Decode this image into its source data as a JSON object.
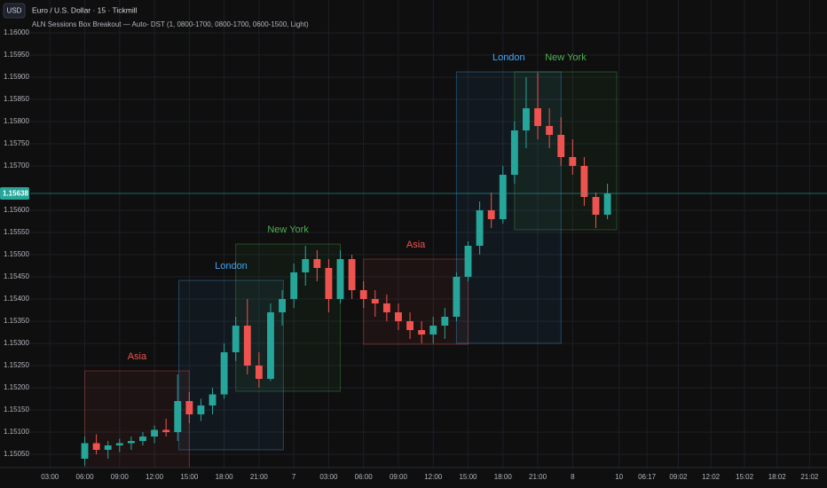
{
  "chart_data": {
    "type": "candlestick",
    "currency": "USD",
    "title": "Euro / U.S. Dollar · 15 · Tickmill",
    "subtitle": "ALN Sessions Box Breakout — Auto- DST (1, 0800-1700, 0800-1700, 0600-1500, Light)",
    "up_color": "#26a69a",
    "down_color": "#ef5350",
    "x": [
      6,
      7,
      8,
      9,
      10,
      11,
      12,
      13,
      14,
      15,
      16,
      17,
      18,
      19,
      20,
      21,
      22,
      23,
      24,
      25,
      26,
      27,
      28,
      29,
      30,
      31,
      32,
      33,
      34,
      35,
      36,
      37,
      38,
      39,
      40,
      41,
      42,
      43,
      44,
      45,
      46,
      47,
      48,
      49,
      50,
      51
    ],
    "open": [
      1.1504,
      1.15075,
      1.1506,
      1.1507,
      1.15075,
      1.1508,
      1.1509,
      1.15105,
      1.151,
      1.1517,
      1.1514,
      1.1516,
      1.15185,
      1.1528,
      1.1534,
      1.1525,
      1.1522,
      1.1537,
      1.154,
      1.1546,
      1.1549,
      1.1547,
      1.154,
      1.1549,
      1.1542,
      1.154,
      1.1539,
      1.1537,
      1.1535,
      1.1533,
      1.1532,
      1.1534,
      1.1536,
      1.1545,
      1.1552,
      1.156,
      1.1558,
      1.1568,
      1.1578,
      1.1583,
      1.1579,
      1.1577,
      1.1572,
      1.157,
      1.1563,
      1.1559
    ],
    "high": [
      1.1509,
      1.15095,
      1.1508,
      1.15085,
      1.1509,
      1.151,
      1.15115,
      1.1513,
      1.1523,
      1.1519,
      1.15175,
      1.152,
      1.153,
      1.1536,
      1.154,
      1.1528,
      1.1539,
      1.1542,
      1.1548,
      1.1552,
      1.1551,
      1.1549,
      1.1551,
      1.155,
      1.1544,
      1.1542,
      1.1541,
      1.1539,
      1.1537,
      1.1535,
      1.1536,
      1.1538,
      1.1546,
      1.1553,
      1.1562,
      1.1564,
      1.157,
      1.158,
      1.159,
      1.1591,
      1.1583,
      1.1581,
      1.1576,
      1.1572,
      1.1564,
      1.1566
    ],
    "low": [
      1.15025,
      1.1505,
      1.1504,
      1.15055,
      1.1506,
      1.1507,
      1.15075,
      1.1509,
      1.1508,
      1.1512,
      1.15125,
      1.1514,
      1.15175,
      1.1526,
      1.1523,
      1.152,
      1.15215,
      1.1534,
      1.1538,
      1.1543,
      1.1544,
      1.1537,
      1.1539,
      1.154,
      1.1538,
      1.1536,
      1.1535,
      1.1533,
      1.1531,
      1.153,
      1.153,
      1.1531,
      1.1535,
      1.1544,
      1.155,
      1.1556,
      1.1557,
      1.1566,
      1.1574,
      1.1576,
      1.1574,
      1.157,
      1.1568,
      1.1561,
      1.1556,
      1.1558
    ],
    "close": [
      1.15075,
      1.1506,
      1.1507,
      1.15075,
      1.1508,
      1.1509,
      1.15105,
      1.151,
      1.1517,
      1.1514,
      1.1516,
      1.15185,
      1.1528,
      1.1534,
      1.1525,
      1.1522,
      1.1537,
      1.154,
      1.1546,
      1.1549,
      1.1547,
      1.154,
      1.1549,
      1.1542,
      1.154,
      1.1539,
      1.1537,
      1.1535,
      1.1533,
      1.1532,
      1.1534,
      1.1536,
      1.1545,
      1.1552,
      1.156,
      1.1558,
      1.1568,
      1.1578,
      1.1583,
      1.1579,
      1.1577,
      1.1572,
      1.157,
      1.1563,
      1.1559,
      1.15638
    ],
    "last_price": 1.15638,
    "sessions": [
      {
        "name": "Asia",
        "color": "#ef5350",
        "start": 6,
        "end": 15,
        "high": 1.15238,
        "low": 1.1502
      },
      {
        "name": "London",
        "color": "#42a5f5",
        "start": 14.1,
        "end": 23.1,
        "high": 1.15442,
        "low": 1.1506
      },
      {
        "name": "New York",
        "color": "#4caf50",
        "start": 19,
        "end": 28,
        "high": 1.15524,
        "low": 1.15192
      },
      {
        "name": "Asia",
        "color": "#ef5350",
        "start": 30,
        "end": 39,
        "high": 1.1549,
        "low": 1.15298
      },
      {
        "name": "London",
        "color": "#42a5f5",
        "start": 38,
        "end": 47,
        "high": 1.15912,
        "low": 1.153
      },
      {
        "name": "New York",
        "color": "#4caf50",
        "start": 43,
        "end": 51.8,
        "high": 1.15912,
        "low": 1.15556
      }
    ],
    "xlim": [
      1.3,
      69.9
    ],
    "ylim": [
      1.1502,
      1.16074
    ],
    "grid": true,
    "yticks": [
      {
        "value": 1.16,
        "label": "1.16000"
      },
      {
        "value": 1.1595,
        "label": "1.15950"
      },
      {
        "value": 1.159,
        "label": "1.15900"
      },
      {
        "value": 1.1585,
        "label": "1.15850"
      },
      {
        "value": 1.158,
        "label": "1.15800"
      },
      {
        "value": 1.1575,
        "label": "1.15750"
      },
      {
        "value": 1.157,
        "label": "1.15700"
      },
      {
        "value": 1.156,
        "label": "1.15600"
      },
      {
        "value": 1.1555,
        "label": "1.15550"
      },
      {
        "value": 1.155,
        "label": "1.15500"
      },
      {
        "value": 1.1545,
        "label": "1.15450"
      },
      {
        "value": 1.154,
        "label": "1.15400"
      },
      {
        "value": 1.1535,
        "label": "1.15350"
      },
      {
        "value": 1.153,
        "label": "1.15300"
      },
      {
        "value": 1.1525,
        "label": "1.15250"
      },
      {
        "value": 1.152,
        "label": "1.15200"
      },
      {
        "value": 1.1515,
        "label": "1.15150"
      },
      {
        "value": 1.151,
        "label": "1.15100"
      },
      {
        "value": 1.1505,
        "label": "1.15050"
      }
    ],
    "xticks": [
      {
        "value": 3,
        "label": "03:00"
      },
      {
        "value": 6,
        "label": "06:00"
      },
      {
        "value": 9,
        "label": "09:00"
      },
      {
        "value": 12,
        "label": "12:00"
      },
      {
        "value": 15,
        "label": "15:00"
      },
      {
        "value": 18,
        "label": "18:00"
      },
      {
        "value": 21,
        "label": "21:00"
      },
      {
        "value": 24,
        "label": "7"
      },
      {
        "value": 27,
        "label": "03:00"
      },
      {
        "value": 30,
        "label": "06:00"
      },
      {
        "value": 33,
        "label": "09:00"
      },
      {
        "value": 36,
        "label": "12:00"
      },
      {
        "value": 39,
        "label": "15:00"
      },
      {
        "value": 42,
        "label": "18:00"
      },
      {
        "value": 45,
        "label": "21:00"
      },
      {
        "value": 48,
        "label": "8"
      },
      {
        "value": 52,
        "label": "10"
      },
      {
        "value": 54.4,
        "label": "06:17"
      },
      {
        "value": 57.1,
        "label": "09:02"
      },
      {
        "value": 59.9,
        "label": "12:02"
      },
      {
        "value": 62.8,
        "label": "15:02"
      },
      {
        "value": 65.6,
        "label": "18:02"
      },
      {
        "value": 68.4,
        "label": "21:02"
      }
    ]
  }
}
